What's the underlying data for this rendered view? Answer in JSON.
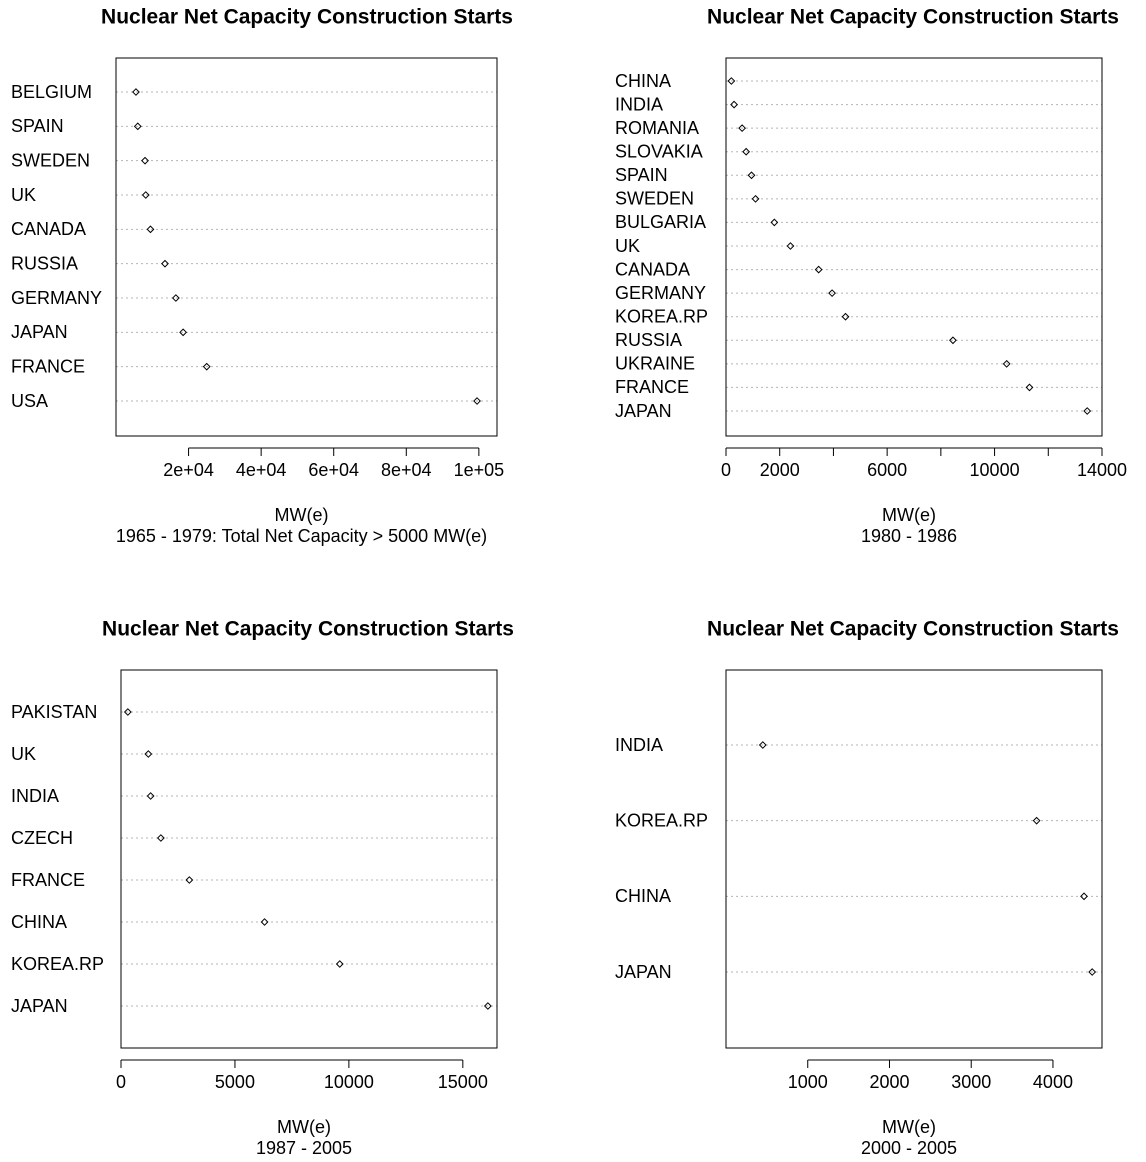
{
  "chart_data": [
    {
      "type": "dot",
      "title": "Nuclear Net Capacity Construction Starts",
      "xlabel": "MW(e)",
      "subtitle": "1965 - 1979: Total Net Capacity > 5000 MW(e)",
      "categories": [
        "BELGIUM",
        "SPAIN",
        "SWEDEN",
        "UK",
        "CANADA",
        "RUSSIA",
        "GERMANY",
        "JAPAN",
        "FRANCE",
        "USA"
      ],
      "values": [
        5500,
        6000,
        8000,
        8200,
        9500,
        13500,
        16500,
        18500,
        25000,
        99500
      ],
      "xlim": [
        0,
        105000
      ],
      "xticks": [
        20000,
        40000,
        60000,
        80000,
        100000
      ],
      "xtick_labels": [
        "2e+04",
        "4e+04",
        "6e+04",
        "8e+04",
        "1e+05"
      ],
      "grid": "dotted horizontal"
    },
    {
      "type": "dot",
      "title": "Nuclear Net Capacity Construction Starts",
      "xlabel": "MW(e)",
      "subtitle": "1980 - 1986",
      "categories": [
        "CHINA",
        "INDIA",
        "ROMANIA",
        "SLOVAKIA",
        "SPAIN",
        "SWEDEN",
        "BULGARIA",
        "UK",
        "CANADA",
        "GERMANY",
        "KOREA.RP",
        "RUSSIA",
        "UKRAINE",
        "FRANCE",
        "JAPAN"
      ],
      "values": [
        200,
        300,
        600,
        750,
        950,
        1100,
        1800,
        2400,
        3450,
        3950,
        4450,
        8450,
        10450,
        11300,
        13450
      ],
      "xlim": [
        0,
        14000
      ],
      "xticks": [
        0,
        2000,
        4000,
        6000,
        8000,
        10000,
        12000,
        14000
      ],
      "xtick_labels": [
        "0",
        "2000",
        "",
        "6000",
        "",
        "10000",
        "",
        "14000"
      ],
      "grid": "dotted horizontal"
    },
    {
      "type": "dot",
      "title": "Nuclear Net Capacity Construction Starts",
      "xlabel": "MW(e)",
      "subtitle": "1987 - 2005",
      "categories": [
        "PAKISTAN",
        "UK",
        "INDIA",
        "CZECH",
        "FRANCE",
        "CHINA",
        "KOREA.RP",
        "JAPAN"
      ],
      "values": [
        300,
        1200,
        1300,
        1750,
        3000,
        6300,
        9600,
        16100
      ],
      "xlim": [
        0,
        16500
      ],
      "xticks": [
        0,
        5000,
        10000,
        15000
      ],
      "xtick_labels": [
        "0",
        "5000",
        "10000",
        "15000"
      ],
      "grid": "dotted horizontal"
    },
    {
      "type": "dot",
      "title": "Nuclear Net Capacity Construction Starts",
      "xlabel": "MW(e)",
      "subtitle": "2000 - 2005",
      "categories": [
        "INDIA",
        "KOREA.RP",
        "CHINA",
        "JAPAN"
      ],
      "values": [
        450,
        3800,
        4380,
        4480
      ],
      "xlim": [
        0,
        4600
      ],
      "xticks": [
        1000,
        2000,
        3000,
        4000
      ],
      "xtick_labels": [
        "1000",
        "2000",
        "3000",
        "4000"
      ],
      "grid": "dotted horizontal"
    }
  ]
}
